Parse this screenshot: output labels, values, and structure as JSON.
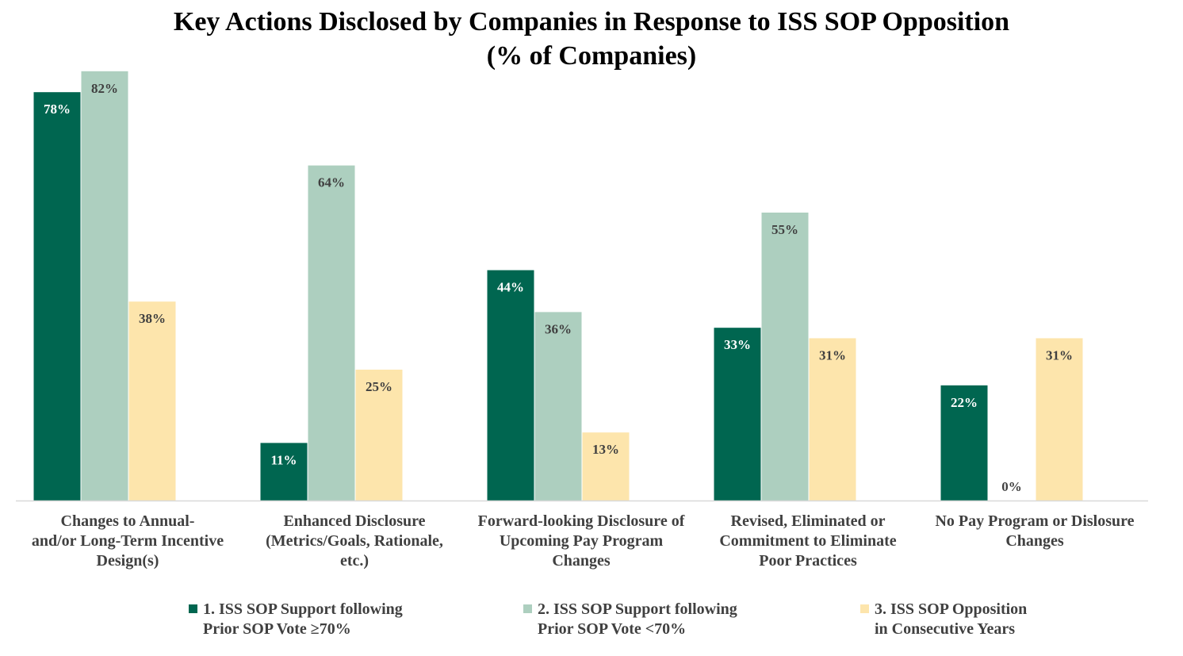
{
  "chart_data": {
    "type": "bar",
    "title": "Key Actions Disclosed by Companies in Response to ISS SOP Opposition",
    "subtitle": "(% of Companies)",
    "categories": [
      "Changes to Annual-\nand/or Long-Term Incentive\nDesign(s)",
      "Enhanced Disclosure\n(Metrics/Goals, Rationale,\netc.)",
      "Forward-looking Disclosure of\nUpcoming Pay Program\nChanges",
      "Revised, Eliminated or\nCommitment to Eliminate\nPoor Practices",
      "No Pay Program or Dislosure\nChanges"
    ],
    "series": [
      {
        "name": "1. ISS SOP Support following\nPrior SOP Vote ≥70%",
        "color": "#006650",
        "label_color": "#ffffff",
        "values": [
          78,
          11,
          44,
          33,
          22
        ],
        "labels": [
          "78%",
          "11%",
          "44%",
          "33%",
          "22%"
        ]
      },
      {
        "name": "2. ISS SOP Support following\nPrior SOP Vote <70%",
        "color": "#adcfbf",
        "label_color": "#404040",
        "values": [
          82,
          64,
          36,
          55,
          0
        ],
        "labels": [
          "82%",
          "64%",
          "36%",
          "55%",
          "0%"
        ]
      },
      {
        "name": "3. ISS SOP Opposition\nin Consecutive Years",
        "color": "#fde5ac",
        "label_color": "#404040",
        "values": [
          38,
          25,
          13,
          31,
          31
        ],
        "labels": [
          "38%",
          "25%",
          "13%",
          "31%",
          "31%"
        ]
      }
    ],
    "xlabel": "",
    "ylabel": "",
    "ylim": [
      0,
      100
    ],
    "grid": false,
    "legend": "bottom",
    "axis_color": "#d9d9d9"
  }
}
